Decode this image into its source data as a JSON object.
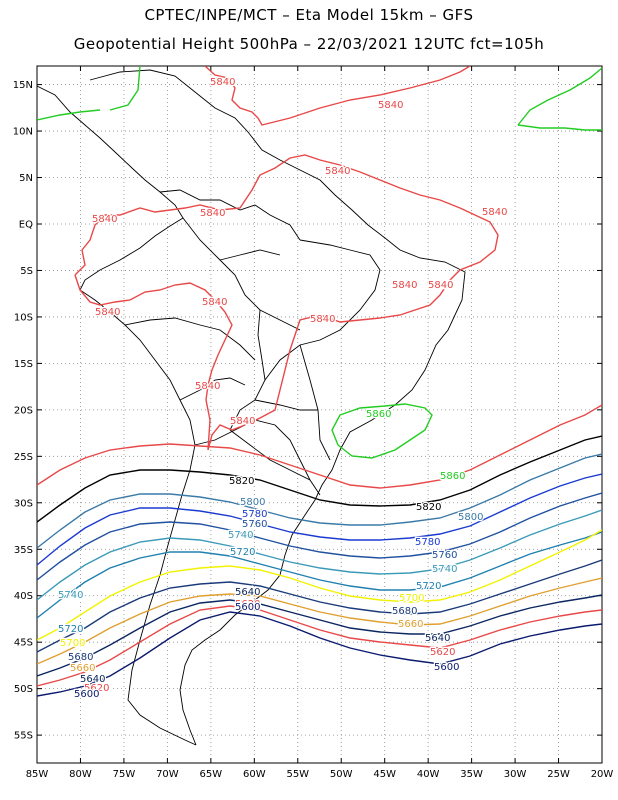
{
  "header": {
    "line1": "CPTEC/INPE/MCT –  Eta Model 15km – GFS",
    "line2": "Geopotential Height 500hPa – 22/03/2021 12UTC fct=105h"
  },
  "map": {
    "lat_labels": [
      "15N",
      "10N",
      "5N",
      "EQ",
      "5S",
      "10S",
      "15S",
      "20S",
      "25S",
      "30S",
      "35S",
      "40S",
      "45S",
      "50S",
      "55S"
    ],
    "lon_labels": [
      "85W",
      "80W",
      "75W",
      "70W",
      "65W",
      "60W",
      "55W",
      "50W",
      "45W",
      "40W",
      "35W",
      "30W",
      "25W",
      "20W"
    ],
    "lon_range": [
      -85,
      -20
    ],
    "lat_range": [
      -58,
      17
    ],
    "grid": true,
    "colors": {
      "5600": "#0a1a6e",
      "5620": "#e84848",
      "5640": "#0b2660",
      "5660": "#e0a030",
      "5680": "#1a3a7a",
      "5700": "#f2f200",
      "5720": "#2080b0",
      "5740": "#3a9ab8",
      "5760": "#2050a0",
      "5780": "#1a3ad0",
      "5800": "#3a7aa8",
      "5820": "#000000",
      "5840": "#e84848",
      "5860": "#22cc22"
    },
    "contour_labels": [
      {
        "text": "5840",
        "color_key": "5840"
      },
      {
        "text": "5840",
        "color_key": "5840"
      },
      {
        "text": "5840",
        "color_key": "5840"
      },
      {
        "text": "5840",
        "color_key": "5840"
      },
      {
        "text": "5840",
        "color_key": "5840"
      },
      {
        "text": "5840",
        "color_key": "5840"
      },
      {
        "text": "5840",
        "color_key": "5840"
      },
      {
        "text": "5840",
        "color_key": "5840"
      },
      {
        "text": "5840",
        "color_key": "5840"
      },
      {
        "text": "5840",
        "color_key": "5840"
      },
      {
        "text": "5840",
        "color_key": "5840"
      },
      {
        "text": "5840",
        "color_key": "5840"
      },
      {
        "text": "5840",
        "color_key": "5840"
      },
      {
        "text": "5860",
        "color_key": "5860"
      },
      {
        "text": "5860",
        "color_key": "5860"
      },
      {
        "text": "5820",
        "color_key": "5820"
      },
      {
        "text": "5820",
        "color_key": "5820"
      },
      {
        "text": "5800",
        "color_key": "5800"
      },
      {
        "text": "5800",
        "color_key": "5800"
      },
      {
        "text": "5780",
        "color_key": "5780"
      },
      {
        "text": "5780",
        "color_key": "5780"
      },
      {
        "text": "5760",
        "color_key": "5760"
      },
      {
        "text": "5760",
        "color_key": "5760"
      },
      {
        "text": "5740",
        "color_key": "5740"
      },
      {
        "text": "5740",
        "color_key": "5740"
      },
      {
        "text": "5740",
        "color_key": "5740"
      },
      {
        "text": "5720",
        "color_key": "5720"
      },
      {
        "text": "5720",
        "color_key": "5720"
      },
      {
        "text": "5720",
        "color_key": "5720"
      },
      {
        "text": "5700",
        "color_key": "5700"
      },
      {
        "text": "5700",
        "color_key": "5700"
      },
      {
        "text": "5680",
        "color_key": "5680"
      },
      {
        "text": "5680",
        "color_key": "5680"
      },
      {
        "text": "5660",
        "color_key": "5660"
      },
      {
        "text": "5660",
        "color_key": "5660"
      },
      {
        "text": "5640",
        "color_key": "5640"
      },
      {
        "text": "5640",
        "color_key": "5640"
      },
      {
        "text": "5640",
        "color_key": "5640"
      },
      {
        "text": "5620",
        "color_key": "5620"
      },
      {
        "text": "5620",
        "color_key": "5620"
      },
      {
        "text": "5620",
        "color_key": "5620"
      },
      {
        "text": "5600",
        "color_key": "5600"
      },
      {
        "text": "5600",
        "color_key": "5600"
      },
      {
        "text": "5600",
        "color_key": "5600"
      }
    ]
  }
}
